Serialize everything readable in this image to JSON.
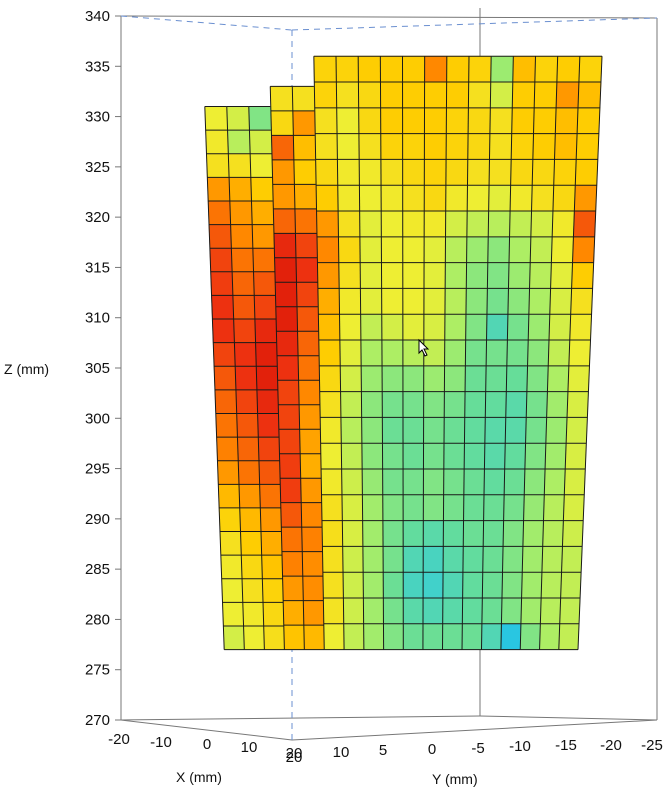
{
  "chart_data": {
    "type": "heatmap",
    "title": "",
    "zlabel": "Z (mm)",
    "xlabel": "X (mm)",
    "ylabel": "Y (mm)",
    "zlim": [
      270,
      340
    ],
    "z_ticks": [
      "340",
      "335",
      "330",
      "325",
      "320",
      "315",
      "310",
      "305",
      "300",
      "295",
      "290",
      "285",
      "280",
      "275",
      "270"
    ],
    "x_ticks": [
      "-20",
      "-10",
      "0",
      "10",
      "20"
    ],
    "y_ticks": [
      "20",
      "10",
      "5",
      "0",
      "-5",
      "-10",
      "-15",
      "-20",
      "-25"
    ],
    "grid": false,
    "colormap": [
      "#00b0f0",
      "#33ccdd",
      "#66dd99",
      "#aaee66",
      "#eeee33",
      "#ffcc00",
      "#ff8800",
      "#ee3311",
      "#cc0000"
    ],
    "value_scale": "relative 0-1 (no colorbar shown)",
    "surface_rows_top_to_bottom": [
      [
        0.5,
        0.45,
        0.3,
        0.55,
        0.55,
        0.6,
        0.6,
        0.62,
        0.62,
        0.62,
        0.75,
        0.62,
        0.6,
        0.35,
        0.65,
        0.6,
        0.62,
        0.6
      ],
      [
        0.52,
        0.4,
        0.45,
        0.58,
        0.72,
        0.6,
        0.55,
        0.58,
        0.62,
        0.62,
        0.62,
        0.62,
        0.55,
        0.45,
        0.62,
        0.62,
        0.72,
        0.65
      ],
      [
        0.55,
        0.55,
        0.5,
        0.8,
        0.65,
        0.55,
        0.5,
        0.58,
        0.62,
        0.62,
        0.62,
        0.6,
        0.58,
        0.55,
        0.62,
        0.62,
        0.65,
        0.62
      ],
      [
        0.72,
        0.68,
        0.62,
        0.72,
        0.62,
        0.55,
        0.5,
        0.55,
        0.6,
        0.6,
        0.62,
        0.6,
        0.58,
        0.55,
        0.6,
        0.62,
        0.65,
        0.62
      ],
      [
        0.78,
        0.72,
        0.68,
        0.72,
        0.68,
        0.58,
        0.52,
        0.52,
        0.55,
        0.58,
        0.6,
        0.58,
        0.55,
        0.55,
        0.58,
        0.58,
        0.6,
        0.62
      ],
      [
        0.82,
        0.75,
        0.72,
        0.8,
        0.78,
        0.62,
        0.52,
        0.5,
        0.52,
        0.55,
        0.58,
        0.52,
        0.5,
        0.48,
        0.52,
        0.55,
        0.58,
        0.72
      ],
      [
        0.85,
        0.78,
        0.78,
        0.9,
        0.85,
        0.72,
        0.55,
        0.48,
        0.5,
        0.52,
        0.52,
        0.45,
        0.42,
        0.4,
        0.42,
        0.45,
        0.52,
        0.82
      ],
      [
        0.86,
        0.8,
        0.82,
        0.92,
        0.88,
        0.75,
        0.58,
        0.48,
        0.5,
        0.5,
        0.48,
        0.4,
        0.35,
        0.32,
        0.38,
        0.42,
        0.5,
        0.75
      ],
      [
        0.88,
        0.82,
        0.85,
        0.92,
        0.85,
        0.72,
        0.55,
        0.48,
        0.5,
        0.5,
        0.48,
        0.38,
        0.32,
        0.3,
        0.35,
        0.4,
        0.48,
        0.62
      ],
      [
        0.88,
        0.85,
        0.9,
        0.92,
        0.82,
        0.68,
        0.52,
        0.48,
        0.5,
        0.5,
        0.48,
        0.4,
        0.32,
        0.28,
        0.32,
        0.38,
        0.46,
        0.55
      ],
      [
        0.85,
        0.88,
        0.92,
        0.9,
        0.8,
        0.65,
        0.5,
        0.42,
        0.45,
        0.48,
        0.46,
        0.38,
        0.3,
        0.2,
        0.28,
        0.35,
        0.45,
        0.52
      ],
      [
        0.82,
        0.88,
        0.92,
        0.88,
        0.78,
        0.62,
        0.48,
        0.38,
        0.38,
        0.4,
        0.42,
        0.35,
        0.28,
        0.28,
        0.28,
        0.32,
        0.42,
        0.5
      ],
      [
        0.8,
        0.85,
        0.9,
        0.85,
        0.75,
        0.58,
        0.45,
        0.35,
        0.32,
        0.32,
        0.35,
        0.32,
        0.26,
        0.26,
        0.25,
        0.3,
        0.38,
        0.48
      ],
      [
        0.78,
        0.82,
        0.88,
        0.85,
        0.72,
        0.55,
        0.42,
        0.32,
        0.28,
        0.28,
        0.3,
        0.28,
        0.25,
        0.24,
        0.22,
        0.28,
        0.36,
        0.46
      ],
      [
        0.76,
        0.8,
        0.85,
        0.85,
        0.7,
        0.52,
        0.4,
        0.32,
        0.26,
        0.26,
        0.28,
        0.26,
        0.24,
        0.22,
        0.22,
        0.28,
        0.35,
        0.45
      ],
      [
        0.72,
        0.78,
        0.82,
        0.86,
        0.68,
        0.5,
        0.42,
        0.32,
        0.28,
        0.26,
        0.28,
        0.26,
        0.24,
        0.22,
        0.24,
        0.3,
        0.36,
        0.46
      ],
      [
        0.66,
        0.72,
        0.78,
        0.86,
        0.72,
        0.52,
        0.44,
        0.34,
        0.28,
        0.28,
        0.3,
        0.28,
        0.26,
        0.24,
        0.26,
        0.32,
        0.38,
        0.46
      ],
      [
        0.6,
        0.66,
        0.72,
        0.82,
        0.75,
        0.55,
        0.46,
        0.36,
        0.3,
        0.28,
        0.3,
        0.28,
        0.26,
        0.26,
        0.28,
        0.34,
        0.4,
        0.46
      ],
      [
        0.55,
        0.62,
        0.68,
        0.78,
        0.76,
        0.56,
        0.46,
        0.36,
        0.28,
        0.24,
        0.22,
        0.24,
        0.26,
        0.26,
        0.3,
        0.36,
        0.4,
        0.44
      ],
      [
        0.52,
        0.58,
        0.64,
        0.76,
        0.74,
        0.55,
        0.44,
        0.36,
        0.28,
        0.2,
        0.18,
        0.22,
        0.24,
        0.26,
        0.3,
        0.36,
        0.4,
        0.42
      ],
      [
        0.5,
        0.55,
        0.6,
        0.72,
        0.74,
        0.55,
        0.44,
        0.36,
        0.26,
        0.18,
        0.16,
        0.2,
        0.24,
        0.26,
        0.3,
        0.36,
        0.4,
        0.42
      ],
      [
        0.5,
        0.52,
        0.58,
        0.68,
        0.72,
        0.54,
        0.44,
        0.36,
        0.28,
        0.22,
        0.2,
        0.22,
        0.24,
        0.26,
        0.3,
        0.36,
        0.4,
        0.42
      ],
      [
        0.45,
        0.5,
        0.56,
        0.64,
        0.66,
        0.5,
        0.42,
        0.36,
        0.3,
        0.26,
        0.26,
        0.26,
        0.26,
        0.2,
        0.1,
        0.3,
        0.38,
        0.42
      ]
    ],
    "column_top_z": [
      331,
      331,
      331,
      333,
      333,
      336,
      336,
      336,
      336,
      336,
      336,
      336,
      336,
      336,
      336,
      336,
      336,
      336
    ],
    "row_bottom_z": 277
  }
}
